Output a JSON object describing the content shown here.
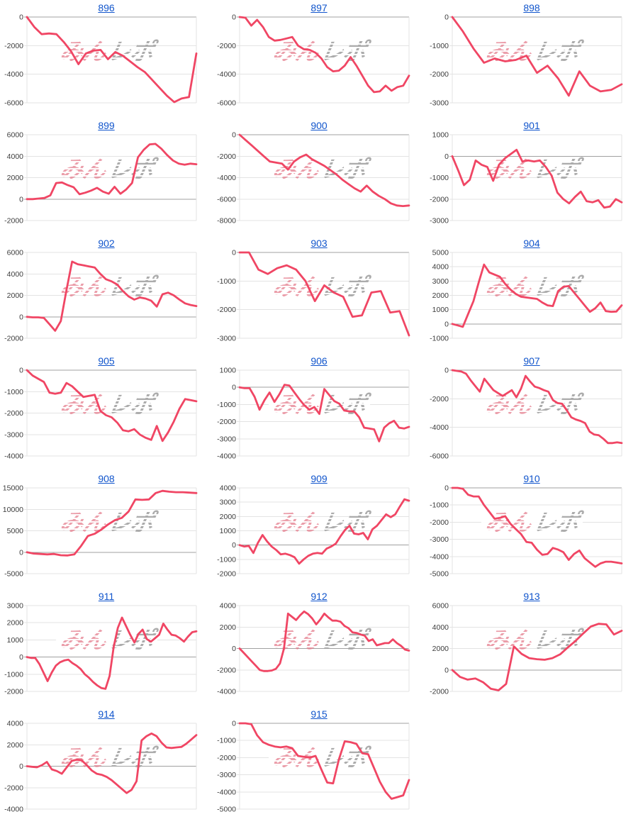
{
  "watermark": {
    "pink_text": "みん",
    "gray_text": "レポ",
    "pink_color": "#e47d8d",
    "gray_color": "#a8a8a8"
  },
  "styles": {
    "line_color": "#f04664",
    "grid_color": "#e3e3e3",
    "zero_line_color": "#a0a0a0",
    "axis_label_color": "#3c3c3c",
    "title_link_color": "#1155cc"
  },
  "chart_data": [
    {
      "type": "line",
      "title": "896",
      "ymax": 0,
      "ymin": -6000,
      "ystep": 2000,
      "xlabel": "",
      "ylabel": "",
      "grid": true,
      "values": [
        0,
        -700,
        -1200,
        -1150,
        -1200,
        -1750,
        -2400,
        -3300,
        -2550,
        -2350,
        -2300,
        -2950,
        -2450,
        -2700,
        -3100,
        -3500,
        -3850,
        -4400,
        -4950,
        -5500,
        -5950,
        -5700,
        -5600,
        -2550
      ]
    },
    {
      "type": "line",
      "title": "897",
      "ymax": 0,
      "ymin": -6000,
      "ystep": 2000,
      "xlabel": "",
      "ylabel": "",
      "grid": true,
      "values": [
        0,
        -50,
        -600,
        -200,
        -700,
        -1400,
        -1650,
        -1600,
        -1500,
        -1400,
        -2000,
        -2250,
        -2300,
        -2500,
        -2900,
        -3500,
        -3800,
        -3750,
        -3400,
        -2800,
        -3400,
        -4100,
        -4800,
        -5250,
        -5200,
        -4800,
        -5150,
        -4900,
        -4800,
        -4100
      ]
    },
    {
      "type": "line",
      "title": "898",
      "ymax": 0,
      "ymin": -3000,
      "ystep": 1000,
      "xlabel": "",
      "ylabel": "",
      "grid": true,
      "values": [
        0,
        -500,
        -1100,
        -1600,
        -1450,
        -1550,
        -1500,
        -1350,
        -1950,
        -1700,
        -2150,
        -2750,
        -1900,
        -2400,
        -2600,
        -2550,
        -2350
      ]
    },
    {
      "type": "line",
      "title": "899",
      "ymax": 6000,
      "ymin": -2000,
      "ystep": 2000,
      "xlabel": "",
      "ylabel": "",
      "grid": true,
      "values": [
        0,
        0,
        50,
        100,
        350,
        1500,
        1550,
        1300,
        1100,
        450,
        600,
        800,
        1050,
        700,
        500,
        1150,
        500,
        900,
        1500,
        3900,
        4600,
        5100,
        5150,
        4700,
        4100,
        3600,
        3300,
        3200,
        3300,
        3250
      ]
    },
    {
      "type": "line",
      "title": "900",
      "ymax": 0,
      "ymin": -8000,
      "ystep": 2000,
      "xlabel": "",
      "ylabel": "",
      "grid": true,
      "values": [
        0,
        -500,
        -1000,
        -1500,
        -2000,
        -2500,
        -2600,
        -2700,
        -3250,
        -2500,
        -2100,
        -1850,
        -2300,
        -2600,
        -2900,
        -3300,
        -3700,
        -4200,
        -4600,
        -5000,
        -5300,
        -4750,
        -5300,
        -5700,
        -6000,
        -6400,
        -6600,
        -6650,
        -6600
      ]
    },
    {
      "type": "line",
      "title": "901",
      "ymax": 1000,
      "ymin": -3000,
      "ystep": 1000,
      "xlabel": "",
      "ylabel": "",
      "grid": true,
      "values": [
        0,
        -650,
        -1350,
        -1100,
        -200,
        -400,
        -500,
        -1150,
        -400,
        -100,
        100,
        300,
        -250,
        -200,
        -250,
        -200,
        -500,
        -900,
        -1700,
        -2000,
        -2200,
        -1900,
        -1650,
        -2100,
        -2150,
        -2050,
        -2400,
        -2350,
        -2000,
        -2150
      ]
    },
    {
      "type": "line",
      "title": "902",
      "ymax": 6000,
      "ymin": -2000,
      "ystep": 2000,
      "xlabel": "",
      "ylabel": "",
      "grid": true,
      "values": [
        0,
        -50,
        -50,
        -100,
        -700,
        -1300,
        -400,
        2500,
        5150,
        4900,
        4800,
        4700,
        4600,
        4000,
        3500,
        3300,
        3000,
        2400,
        1900,
        1600,
        1800,
        1700,
        1500,
        950,
        2100,
        2250,
        2000,
        1600,
        1250,
        1100,
        1000
      ]
    },
    {
      "type": "line",
      "title": "903",
      "ymax": 0,
      "ymin": -3000,
      "ystep": 1000,
      "xlabel": "",
      "ylabel": "",
      "grid": true,
      "values": [
        0,
        0,
        -600,
        -750,
        -550,
        -450,
        -600,
        -1000,
        -1700,
        -1150,
        -1400,
        -1550,
        -2250,
        -2200,
        -1400,
        -1350,
        -2100,
        -2050,
        -2900
      ]
    },
    {
      "type": "line",
      "title": "904",
      "ymax": 5000,
      "ymin": -1000,
      "ystep": 1000,
      "xlabel": "",
      "ylabel": "",
      "grid": true,
      "values": [
        0,
        -100,
        -200,
        700,
        1600,
        2900,
        4150,
        3600,
        3450,
        3300,
        2800,
        2400,
        2100,
        1900,
        1850,
        1800,
        1750,
        1500,
        1300,
        1250,
        2300,
        2600,
        2650,
        2200,
        1750,
        1300,
        850,
        1100,
        1500,
        900,
        850,
        870,
        1300
      ]
    },
    {
      "type": "line",
      "title": "905",
      "ymax": 0,
      "ymin": -4000,
      "ystep": 1000,
      "xlabel": "",
      "ylabel": "",
      "grid": true,
      "values": [
        0,
        -250,
        -400,
        -550,
        -1050,
        -1100,
        -1050,
        -600,
        -750,
        -1000,
        -1250,
        -1200,
        -1150,
        -1900,
        -2100,
        -2200,
        -2450,
        -2800,
        -2850,
        -2750,
        -3000,
        -3150,
        -3250,
        -2600,
        -3300,
        -2900,
        -2400,
        -1800,
        -1350,
        -1400,
        -1450
      ]
    },
    {
      "type": "line",
      "title": "906",
      "ymax": 1000,
      "ymin": -4000,
      "ystep": 1000,
      "xlabel": "",
      "ylabel": "",
      "grid": true,
      "values": [
        0,
        -50,
        -50,
        -550,
        -1300,
        -750,
        -300,
        -850,
        -400,
        150,
        100,
        -300,
        -700,
        -1050,
        -1300,
        -1150,
        -1550,
        -100,
        -450,
        -800,
        -950,
        -1350,
        -1400,
        -1400,
        -1750,
        -2350,
        -2400,
        -2450,
        -3150,
        -2350,
        -2100,
        -1950,
        -2350,
        -2400,
        -2300
      ]
    },
    {
      "type": "line",
      "title": "907",
      "ymax": 0,
      "ymin": -6000,
      "ystep": 2000,
      "xlabel": "",
      "ylabel": "",
      "grid": true,
      "values": [
        0,
        -50,
        -100,
        -250,
        -700,
        -1100,
        -1500,
        -600,
        -1000,
        -1400,
        -1600,
        -1800,
        -1600,
        -1400,
        -1900,
        -1300,
        -400,
        -800,
        -1150,
        -1250,
        -1400,
        -1500,
        -2100,
        -2300,
        -2350,
        -2800,
        -3300,
        -3450,
        -3550,
        -3700,
        -4300,
        -4500,
        -4550,
        -4800,
        -5100,
        -5100,
        -5050,
        -5100
      ]
    },
    {
      "type": "line",
      "title": "908",
      "ymax": 15000,
      "ymin": -5000,
      "ystep": 5000,
      "xlabel": "",
      "ylabel": "",
      "grid": true,
      "values": [
        0,
        -300,
        -400,
        -500,
        -400,
        -700,
        -750,
        -500,
        1500,
        3800,
        4300,
        5300,
        6500,
        7500,
        8000,
        9500,
        12300,
        12200,
        12300,
        13800,
        14300,
        14100,
        14000,
        14000,
        13900,
        13800
      ]
    },
    {
      "type": "line",
      "title": "909",
      "ymax": 4000,
      "ymin": -2000,
      "ystep": 1000,
      "xlabel": "",
      "ylabel": "",
      "grid": true,
      "values": [
        0,
        -100,
        -50,
        -550,
        150,
        700,
        250,
        -100,
        -350,
        -650,
        -600,
        -700,
        -850,
        -1300,
        -1000,
        -750,
        -600,
        -550,
        -600,
        -250,
        -100,
        100,
        600,
        1050,
        1350,
        800,
        750,
        850,
        400,
        1100,
        1350,
        1750,
        2150,
        1950,
        2150,
        2700,
        3200,
        3100
      ]
    },
    {
      "type": "line",
      "title": "910",
      "ymax": 0,
      "ymin": -5000,
      "ystep": 1000,
      "xlabel": "",
      "ylabel": "",
      "grid": true,
      "values": [
        0,
        0,
        -50,
        -400,
        -500,
        -500,
        -1000,
        -1400,
        -1800,
        -1750,
        -1650,
        -2100,
        -2400,
        -2700,
        -3150,
        -3200,
        -3600,
        -3900,
        -3850,
        -3500,
        -3600,
        -3750,
        -4200,
        -3850,
        -3650,
        -4100,
        -4350,
        -4600,
        -4400,
        -4300,
        -4300,
        -4350,
        -4400
      ]
    },
    {
      "type": "line",
      "title": "911",
      "ymax": 3000,
      "ymin": -2000,
      "ystep": 1000,
      "xlabel": "",
      "ylabel": "",
      "grid": true,
      "values": [
        0,
        -50,
        -50,
        -400,
        -900,
        -1400,
        -900,
        -500,
        -300,
        -200,
        -150,
        -350,
        -500,
        -700,
        -1000,
        -1200,
        -1450,
        -1650,
        -1800,
        -1850,
        -1100,
        600,
        1700,
        2300,
        1800,
        1300,
        850,
        1350,
        1600,
        1050,
        900,
        1100,
        1300,
        1950,
        1600,
        1300,
        1250,
        1100,
        900,
        1200,
        1450,
        1500
      ]
    },
    {
      "type": "line",
      "title": "912",
      "ymax": 4000,
      "ymin": -4000,
      "ystep": 2000,
      "xlabel": "",
      "ylabel": "",
      "grid": true,
      "values": [
        0,
        -400,
        -800,
        -1200,
        -1600,
        -2000,
        -2100,
        -2100,
        -2050,
        -1900,
        -1400,
        0,
        3250,
        2950,
        2650,
        3100,
        3450,
        3200,
        2800,
        2250,
        2700,
        3250,
        2900,
        2600,
        2600,
        2500,
        2100,
        1900,
        1500,
        1450,
        1300,
        1200,
        700,
        850,
        300,
        400,
        500,
        500,
        850,
        500,
        250,
        -100,
        -200
      ]
    },
    {
      "type": "line",
      "title": "913",
      "ymax": 6000,
      "ymin": -2000,
      "ystep": 2000,
      "xlabel": "",
      "ylabel": "",
      "grid": true,
      "values": [
        0,
        -650,
        -900,
        -800,
        -1150,
        -1750,
        -1900,
        -1300,
        2200,
        1500,
        1100,
        1000,
        950,
        1100,
        1450,
        2100,
        2700,
        3400,
        4050,
        4300,
        4250,
        3300,
        3650
      ]
    },
    {
      "type": "line",
      "title": "914",
      "ymax": 4000,
      "ymin": -4000,
      "ystep": 2000,
      "xlabel": "",
      "ylabel": "",
      "grid": true,
      "values": [
        0,
        -50,
        -100,
        100,
        400,
        -300,
        -450,
        -700,
        -100,
        500,
        600,
        550,
        100,
        -400,
        -700,
        -800,
        -1000,
        -1300,
        -1700,
        -2100,
        -2500,
        -2200,
        -1400,
        2400,
        2800,
        3050,
        2800,
        2200,
        1750,
        1700,
        1750,
        1800,
        2100,
        2500,
        2900
      ]
    },
    {
      "type": "line",
      "title": "915",
      "ymax": 0,
      "ymin": -5000,
      "ystep": 1000,
      "xlabel": "",
      "ylabel": "",
      "grid": true,
      "values": [
        0,
        0,
        -50,
        -700,
        -1100,
        -1250,
        -1350,
        -1400,
        -1350,
        -1450,
        -1900,
        -1950,
        -2000,
        -1900,
        -2700,
        -3450,
        -3500,
        -2100,
        -1050,
        -1100,
        -1200,
        -1750,
        -1800,
        -2600,
        -3400,
        -4000,
        -4400,
        -4300,
        -4200,
        -3300
      ]
    }
  ]
}
